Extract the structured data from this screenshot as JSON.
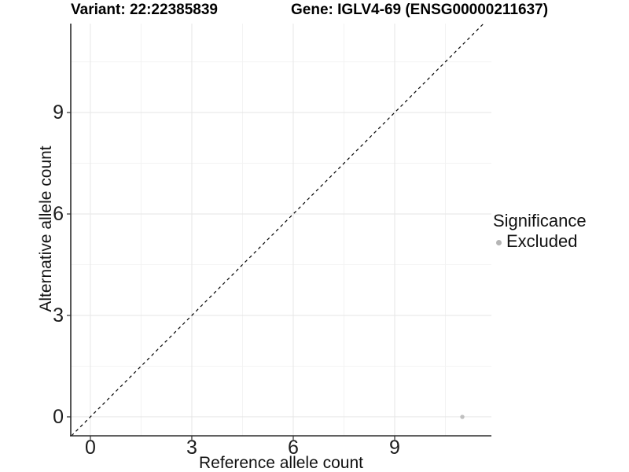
{
  "header": {
    "variant_title": "Variant: 22:22385839",
    "gene_title": "Gene: IGLV4-69 (ENSG00000211637)"
  },
  "chart_data": {
    "type": "scatter",
    "title": "Variant: 22:22385839 | Gene: IGLV4-69 (ENSG00000211637)",
    "xlabel": "Reference allele count",
    "ylabel": "Alternative allele count",
    "xlim": [
      -0.58,
      11.86
    ],
    "ylim": [
      -0.56,
      11.63
    ],
    "x_ticks": [
      0,
      3,
      6,
      9
    ],
    "y_ticks": [
      0,
      3,
      6,
      9
    ],
    "x_minor_ticks": [
      1.5,
      4.5,
      7.5,
      10.5
    ],
    "y_minor_ticks": [
      1.5,
      4.5,
      7.5,
      10.5
    ],
    "grid": true,
    "legend": {
      "title": "Significance",
      "position": "right",
      "items": [
        {
          "label": "Excluded",
          "color": "#b5b5b5"
        }
      ]
    },
    "series": [
      {
        "name": "Excluded",
        "color": "#c0c0c0",
        "point_radius": 2.7,
        "points": [
          {
            "x": 11,
            "y": 0
          }
        ]
      }
    ],
    "identity_line": {
      "slope": 1,
      "intercept": 0,
      "style": "dashed",
      "color": "#000000"
    }
  },
  "colors": {
    "axis_line": "#2d2d2d",
    "grid_major": "#e6e6e6",
    "grid_minor": "#f3f3f3",
    "background": "#ffffff"
  }
}
